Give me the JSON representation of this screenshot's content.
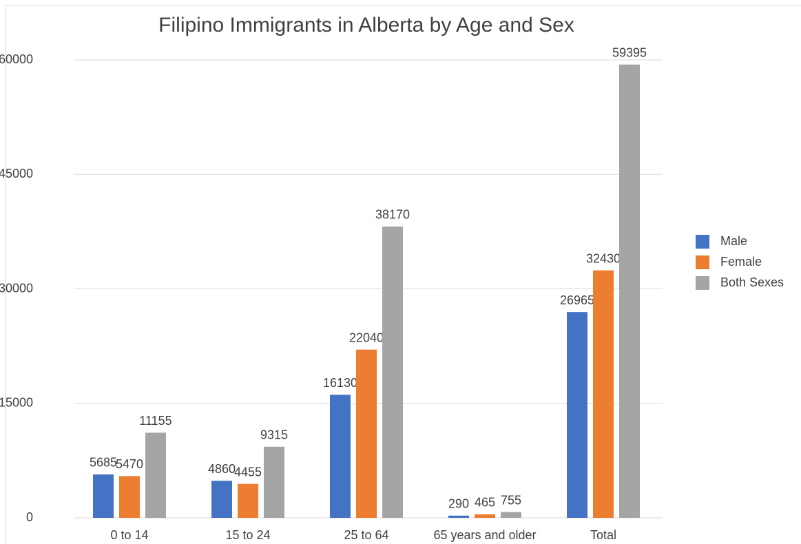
{
  "chart_data": {
    "type": "bar",
    "title": "Filipino Immigrants in Alberta by Age and Sex",
    "categories": [
      "0 to 14",
      "15 to 24",
      "25 to 64",
      "65 years and older",
      "Total"
    ],
    "series": [
      {
        "name": "Male",
        "color": "#4472c4",
        "values": [
          5685,
          4860,
          16130,
          290,
          26965
        ]
      },
      {
        "name": "Female",
        "color": "#ed7d31",
        "values": [
          5470,
          4455,
          22040,
          465,
          32430
        ]
      },
      {
        "name": "Both Sexes",
        "color": "#a5a5a5",
        "values": [
          11155,
          9315,
          38170,
          755,
          59395
        ]
      }
    ],
    "ylim": [
      0,
      60000
    ],
    "yticks": [
      0,
      15000,
      30000,
      45000,
      60000
    ],
    "grid": true,
    "legend": "right"
  }
}
